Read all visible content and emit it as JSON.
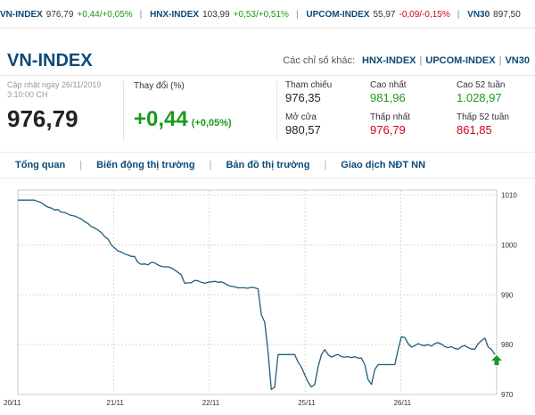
{
  "ticker": [
    {
      "name": "VN-INDEX",
      "value": "976,79",
      "change": "+0,44/+0,05%",
      "dir": "up"
    },
    {
      "name": "HNX-INDEX",
      "value": "103,99",
      "change": "+0,53/+0,51%",
      "dir": "up"
    },
    {
      "name": "UPCOM-INDEX",
      "value": "55,97",
      "change": "-0,09/-0,15%",
      "dir": "down"
    },
    {
      "name": "VN30",
      "value": "897,50",
      "change": "",
      "dir": "up"
    }
  ],
  "header": {
    "title": "VN-INDEX",
    "others_label": "Các chỉ số khác:",
    "other_links": [
      "HNX-INDEX",
      "UPCOM-INDEX",
      "VN30"
    ]
  },
  "summary": {
    "updated": "Cập nhật ngày 26/11/2019 3:10:00 CH",
    "price": "976,79",
    "change_label": "Thay đổi (%)",
    "change_value": "+0,44",
    "change_pct": "(+0,05%)"
  },
  "stats": {
    "ref_label": "Tham chiếu",
    "ref_value": "976,35",
    "open_label": "Mở cửa",
    "open_value": "980,57",
    "high_label": "Cao nhất",
    "high_value": "981,96",
    "low_label": "Thấp nhất",
    "low_value": "976,79",
    "high52_label": "Cao 52 tuần",
    "high52_value": "1.028,97",
    "low52_label": "Thấp 52 tuần",
    "low52_value": "861,85"
  },
  "nav": [
    "Tổng quan",
    "Biến động thị trường",
    "Bản đồ thị trường",
    "Giao dịch NĐT NN"
  ],
  "colors": {
    "brand": "#0c4a78",
    "up": "#1a9a1a",
    "down": "#d0011b",
    "line": "#1f5f7a"
  },
  "chart_data": {
    "type": "line",
    "x_tick_labels": [
      "20/11",
      "21/11",
      "22/11",
      "25/11",
      "26/11"
    ],
    "y_ticks": [
      970,
      980,
      990,
      1000,
      1010
    ],
    "ylim": [
      970,
      1011
    ],
    "grid": true,
    "series": [
      {
        "values": [
          1009,
          1009,
          1009,
          1009,
          1009,
          1009,
          1008.7,
          1008.5,
          1008,
          1007.6,
          1007.4,
          1007,
          1007.1,
          1006.6,
          1006.5,
          1006.2,
          1005.9,
          1005.8,
          1005.5,
          1005.2,
          1004.7,
          1004.3,
          1003.7,
          1003.4,
          1003,
          1002.5,
          1001.7,
          1001.2,
          1000,
          999.4,
          998.8,
          998.6,
          998.2,
          998,
          997.7,
          997.7,
          996.5,
          996.1,
          996.2,
          996,
          996.5,
          996.4,
          996,
          995.7,
          995.6,
          995.6,
          995.4,
          995,
          994.5,
          994,
          992.3,
          992.4,
          992.4,
          992.9,
          992.8,
          992.5,
          992.3,
          992.5,
          992.6,
          992.7,
          992.5,
          992.6,
          992.3,
          991.9,
          991.7,
          991.6,
          991.4,
          991.4,
          991.4,
          991.3,
          991.5,
          991.4,
          991.2,
          986,
          984.5,
          978.5,
          971,
          971.5,
          978,
          978,
          978,
          978,
          978,
          978,
          976.5,
          975.5,
          974,
          972.5,
          971.5,
          972,
          975.5,
          978,
          979,
          978,
          977.5,
          977.8,
          978,
          977.6,
          977.5,
          977.6,
          977.4,
          977.6,
          977.3,
          977.3,
          976,
          973,
          972,
          975,
          976,
          976,
          976,
          976,
          976,
          976,
          979,
          981.6,
          981.4,
          980.2,
          979.5,
          979.8,
          980.2,
          979.9,
          979.8,
          980,
          979.7,
          980.2,
          980.4,
          980.1,
          979.6,
          979.4,
          979.6,
          979.2,
          979.1,
          979.6,
          979.8,
          979.4,
          979.1,
          979.1,
          980.2,
          980.8,
          981.3,
          979.5,
          979,
          978
        ]
      }
    ],
    "last_value": 976.79
  }
}
